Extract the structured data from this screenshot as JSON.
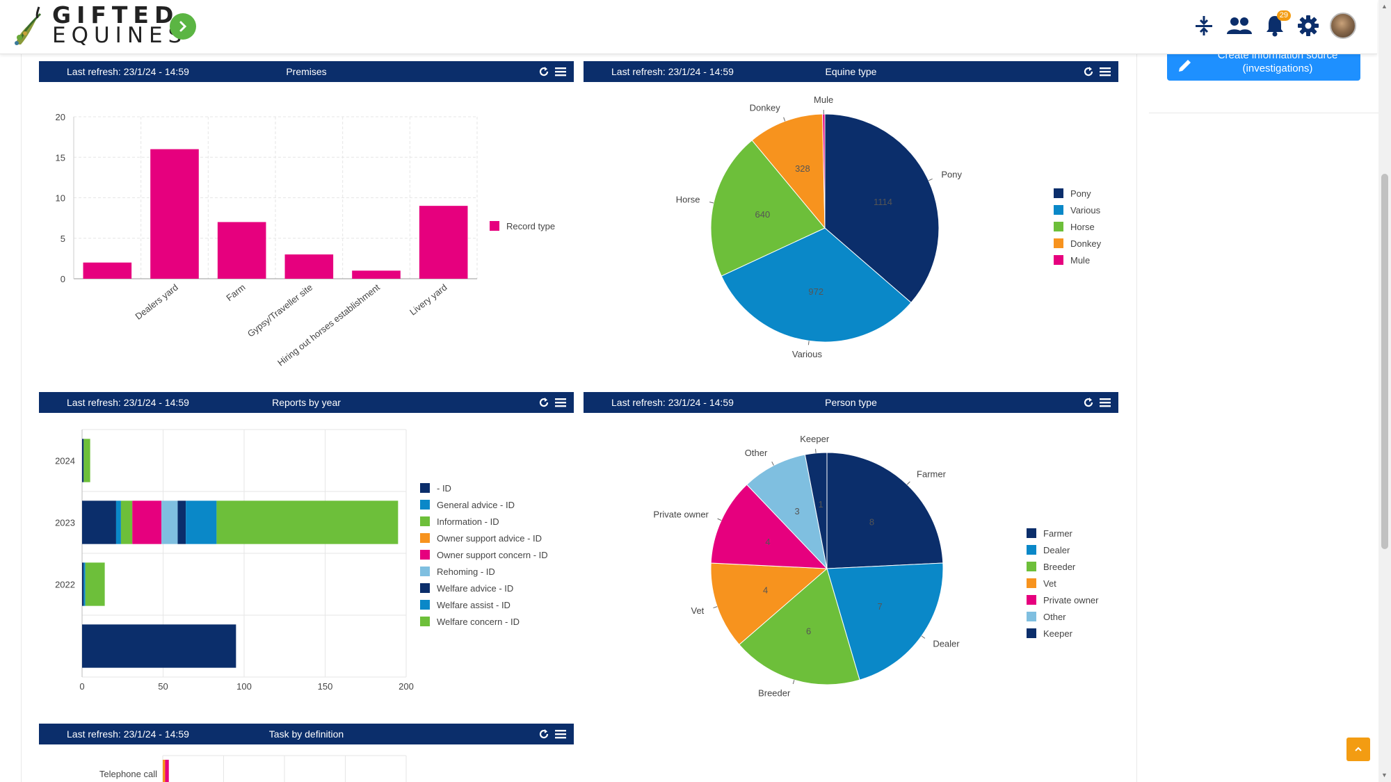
{
  "app": {
    "logo_line1": "GIFTED",
    "logo_line2": "EQUINES",
    "notifications_count": "29",
    "create_button_label": "Create information source (investigations)"
  },
  "icons": {
    "sidebar_toggle": "chevron-right-icon",
    "compress": "compress-vertical-icon",
    "users": "users-icon",
    "notifications": "bell-icon",
    "settings": "gear-icon",
    "create": "pencil-icon",
    "widget_refresh": "refresh-icon",
    "widget_menu": "hamburger-menu-icon",
    "back_to_top": "chevron-up-icon"
  },
  "colors": {
    "brand_navy": "#0b2e6b",
    "accent_green": "#5bb543",
    "primary_blue": "#1e90ff",
    "badge_orange": "#f39c12"
  },
  "widgets": {
    "premises": {
      "refresh_text": "Last refresh: 23/1/24 - 14:59",
      "title": "Premises",
      "chart_data": {
        "type": "bar",
        "categories": [
          "",
          "Dealers yard",
          "Farm",
          "Gypsy/Traveller site",
          "Hiring out horses establishment",
          "Livery yard"
        ],
        "series": [
          {
            "name": "Record type",
            "values": [
              2,
              16,
              7,
              3,
              1,
              9
            ],
            "color": "#e6007e"
          }
        ],
        "ylim": [
          0,
          20
        ],
        "yticks": [
          0,
          5,
          10,
          15,
          20
        ],
        "legend_position": "right",
        "grid": true
      }
    },
    "equine_type": {
      "refresh_text": "Last refresh: 23/1/24 - 14:59",
      "title": "Equine type",
      "chart_data": {
        "type": "pie",
        "slices": [
          {
            "label": "Pony",
            "value": 1114,
            "color": "#0b2e6b"
          },
          {
            "label": "Various",
            "value": 972,
            "color": "#0a88c8"
          },
          {
            "label": "Horse",
            "value": 640,
            "color": "#6dbf3a"
          },
          {
            "label": "Donkey",
            "value": 328,
            "color": "#f7931e"
          },
          {
            "label": "Mule",
            "value": 10,
            "color": "#e6007e"
          }
        ],
        "data_labels": [
          "1114",
          "972",
          "640",
          "328",
          ""
        ],
        "legend_position": "right"
      }
    },
    "reports_by_year": {
      "refresh_text": "Last refresh: 23/1/24 - 14:59",
      "title": "Reports by year",
      "chart_data": {
        "type": "bar",
        "orientation": "horizontal",
        "stacked": true,
        "categories": [
          "2024",
          "2023",
          "2022",
          ""
        ],
        "series": [
          {
            "name": " - ID",
            "values": [
              1,
              21,
              1,
              95
            ],
            "color": "#0b2e6b"
          },
          {
            "name": "General advice - ID",
            "values": [
              0,
              3,
              1,
              0
            ],
            "color": "#0a88c8"
          },
          {
            "name": "Information - ID",
            "values": [
              4,
              7,
              12,
              0
            ],
            "color": "#6dbf3a"
          },
          {
            "name": "Owner support advice - ID",
            "values": [
              0,
              0,
              0,
              0
            ],
            "color": "#f7931e"
          },
          {
            "name": "Owner support concern - ID",
            "values": [
              0,
              18,
              0,
              0
            ],
            "color": "#e6007e"
          },
          {
            "name": "Rehoming - ID",
            "values": [
              0,
              10,
              0,
              0
            ],
            "color": "#7fbfe0"
          },
          {
            "name": "Welfare advice - ID",
            "values": [
              0,
              5,
              0,
              0
            ],
            "color": "#0b2e6b"
          },
          {
            "name": "Welfare assist - ID",
            "values": [
              0,
              19,
              0,
              0
            ],
            "color": "#0a88c8"
          },
          {
            "name": "Welfare concern - ID",
            "values": [
              0,
              112,
              0,
              0
            ],
            "color": "#6dbf3a"
          }
        ],
        "xlim": [
          0,
          200
        ],
        "xticks": [
          0,
          50,
          100,
          150,
          200
        ],
        "legend_position": "right",
        "grid": true
      }
    },
    "person_type": {
      "refresh_text": "Last refresh: 23/1/24 - 14:59",
      "title": "Person type",
      "chart_data": {
        "type": "pie",
        "slices": [
          {
            "label": "Farmer",
            "value": 8,
            "color": "#0b2e6b"
          },
          {
            "label": "Dealer",
            "value": 7,
            "color": "#0a88c8"
          },
          {
            "label": "Breeder",
            "value": 6,
            "color": "#6dbf3a"
          },
          {
            "label": "Vet",
            "value": 4,
            "color": "#f7931e"
          },
          {
            "label": "Private owner",
            "value": 4,
            "color": "#e6007e"
          },
          {
            "label": "Other",
            "value": 3,
            "color": "#7fbfe0"
          },
          {
            "label": "Keeper",
            "value": 1,
            "color": "#0b2e6b"
          }
        ],
        "data_labels": [
          "8",
          "7",
          "6",
          "4",
          "4",
          "3",
          "1"
        ],
        "legend_position": "right"
      }
    },
    "task_by_definition": {
      "refresh_text": "Last refresh: 23/1/24 - 14:59",
      "title": "Task by definition",
      "chart_data": {
        "type": "bar",
        "orientation": "horizontal",
        "stacked": true,
        "categories": [
          "Telephone call"
        ],
        "series": [
          {
            "name": "",
            "values": [
              2
            ],
            "color": "#f7931e"
          },
          {
            "name": "",
            "values": [
              3
            ],
            "color": "#e6007e"
          }
        ],
        "xlim": [
          0,
          200
        ]
      }
    }
  }
}
